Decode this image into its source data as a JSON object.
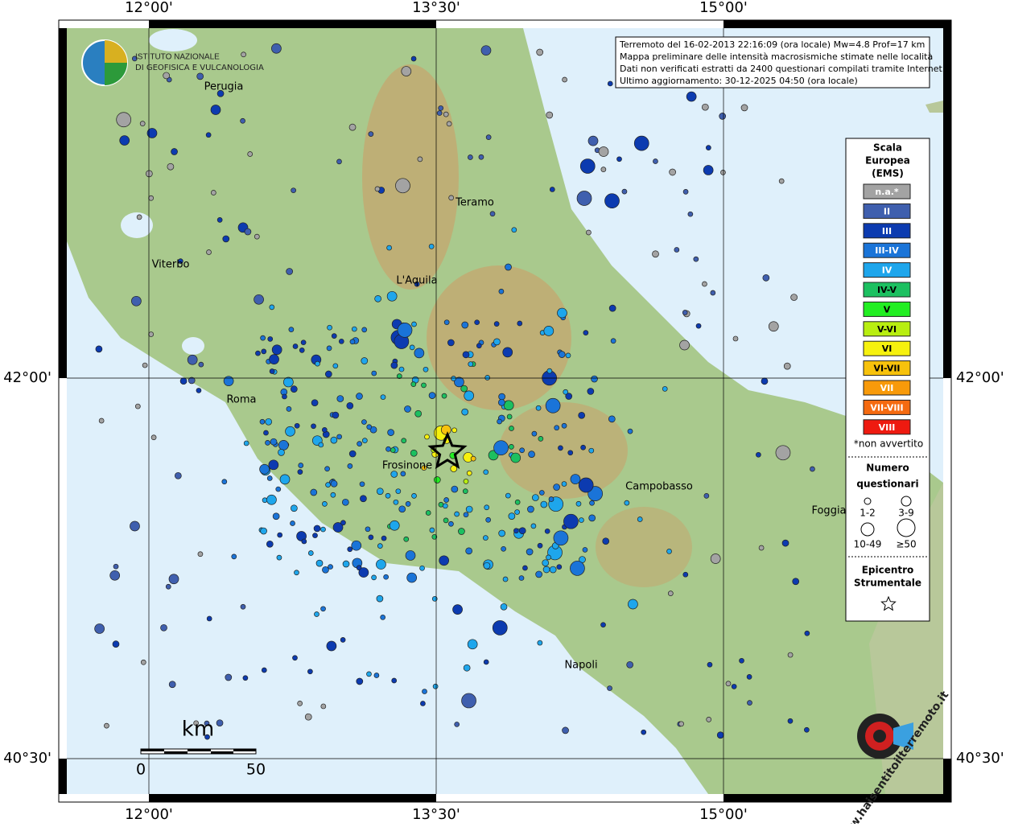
{
  "axes": {
    "lon_labels": [
      "12°00'",
      "13°30'",
      "15°00'"
    ],
    "lat_labels": [
      "42°00'",
      "40°30'"
    ]
  },
  "info": {
    "lines": [
      "Terremoto del 16-02-2013 22:16:09 (ora locale) Mw=4.8 Prof=17 km",
      "Mappa preliminare delle intensità macrosismiche stimate nelle località",
      "Dati non verificati estratti da 2400 questionari compilati tramite Internet.",
      "Ultimo aggiornamento: 30-12-2025 04:50 (ora locale)"
    ]
  },
  "logo": {
    "line1": "ISTITUTO NAZIONALE",
    "line2": "DI GEOFISICA E VULCANOLOGIA"
  },
  "cities": [
    "Perugia",
    "Teramo",
    "Viterbo",
    "L'Aquila",
    "Roma",
    "Frosinone",
    "Campobasso",
    "Foggia",
    "Napoli"
  ],
  "legend": {
    "title": [
      "Scala",
      "Europea",
      "(EMS)"
    ],
    "classes": [
      {
        "label": "n.a.*",
        "color": "#a3a3a3"
      },
      {
        "label": "II",
        "color": "#3f5fae"
      },
      {
        "label": "III",
        "color": "#0c3bb0"
      },
      {
        "label": "III-IV",
        "color": "#1a74d8"
      },
      {
        "label": "IV",
        "color": "#1ea6ec"
      },
      {
        "label": "IV-V",
        "color": "#1cc060"
      },
      {
        "label": "V",
        "color": "#22ee22"
      },
      {
        "label": "V-VI",
        "color": "#b8ee10"
      },
      {
        "label": "VI",
        "color": "#f6f10e"
      },
      {
        "label": "VI-VII",
        "color": "#f7c20c"
      },
      {
        "label": "VII",
        "color": "#f89a0a"
      },
      {
        "label": "VII-VIII",
        "color": "#f56a10"
      },
      {
        "label": "VIII",
        "color": "#ee1a10"
      }
    ],
    "note": "*non avvertito",
    "count_title": [
      "Numero",
      "questionari"
    ],
    "sizes": [
      "1-2",
      "3-9",
      "10-49",
      "≥50"
    ],
    "epicenter_title": [
      "Epicentro",
      "Strumentale"
    ]
  },
  "scale": {
    "unit": "km",
    "ticks": [
      "0",
      "50"
    ]
  },
  "watermark": "www.haisentitoilterremoto.it"
}
